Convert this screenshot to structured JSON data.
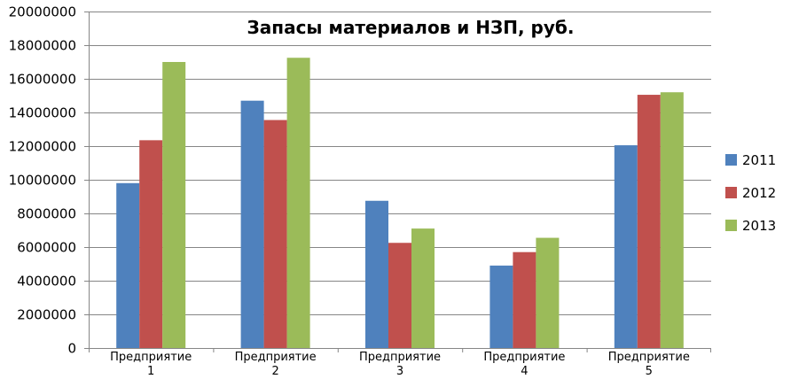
{
  "chart_data": {
    "type": "bar",
    "title": "Запасы материалов и НЗП, руб.",
    "xlabel": "",
    "ylabel": "",
    "categories": [
      [
        "Предприятие",
        "1"
      ],
      [
        "Предприятие",
        "2"
      ],
      [
        "Предприятие",
        "3"
      ],
      [
        "Предприятие",
        "4"
      ],
      [
        "Предприятие",
        "5"
      ]
    ],
    "ylim": [
      0,
      20000000
    ],
    "yticks": [
      0,
      2000000,
      4000000,
      6000000,
      8000000,
      10000000,
      12000000,
      14000000,
      16000000,
      18000000,
      20000000
    ],
    "grid": true,
    "legend_position": "right",
    "series": [
      {
        "name": "2011",
        "color": "#4f81bd",
        "values": [
          9800000,
          14700000,
          8750000,
          4900000,
          12050000
        ]
      },
      {
        "name": "2012",
        "color": "#c0504d",
        "values": [
          12350000,
          13550000,
          6250000,
          5700000,
          15050000
        ]
      },
      {
        "name": "2013",
        "color": "#9bbb59",
        "values": [
          17000000,
          17250000,
          7100000,
          6550000,
          15200000
        ]
      }
    ]
  }
}
